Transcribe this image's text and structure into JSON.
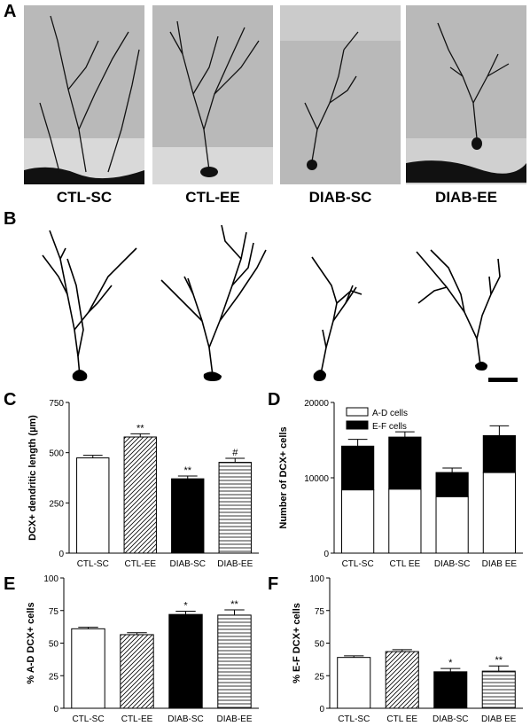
{
  "panel_letters": [
    "A",
    "B",
    "C",
    "D",
    "E",
    "F"
  ],
  "micrograph_labels": [
    "CTL-SC",
    "CTL-EE",
    "DIAB-SC",
    "DIAB-EE"
  ],
  "colors": {
    "bar_fill_black": "#000000",
    "bar_fill_white": "#ffffff",
    "hatch": "#000000",
    "micrograph_bg": "#b9b9b9"
  },
  "chart_data": [
    {
      "panel": "C",
      "type": "bar",
      "categories": [
        "CTL-SC",
        "CTL-EE",
        "DIAB-SC",
        "DIAB-EE"
      ],
      "values": [
        474,
        578,
        370,
        452
      ],
      "errors": [
        13,
        16,
        14,
        20
      ],
      "annotations": [
        "",
        "**",
        "**",
        "#"
      ],
      "fills": [
        "white",
        "diagonal",
        "black",
        "horizontal"
      ],
      "ylabel": "DCX+ dendritic length (µm)",
      "yticks": [
        0,
        250,
        500,
        750
      ],
      "ylim": [
        0,
        750
      ]
    },
    {
      "panel": "D",
      "type": "bar",
      "stacked": true,
      "categories": [
        "CTL-SC",
        "CTL EE",
        "DIAB-SC",
        "DIAB EE"
      ],
      "series": [
        {
          "name": "A-D cells",
          "values": [
            8400,
            8500,
            7500,
            10700
          ],
          "fill": "white"
        },
        {
          "name": "E-F cells",
          "values": [
            5800,
            6900,
            3200,
            4900
          ],
          "fill": "black"
        }
      ],
      "errors": [
        900,
        700,
        600,
        1300
      ],
      "ylabel": "Number of DCX+ cells",
      "yticks": [
        0,
        10000,
        20000
      ],
      "ylim": [
        0,
        20000
      ],
      "legend_position": "top-left"
    },
    {
      "panel": "E",
      "type": "bar",
      "categories": [
        "CTL-SC",
        "CTL-EE",
        "DIAB-SC",
        "DIAB-EE"
      ],
      "values": [
        61,
        56.5,
        72,
        71.5
      ],
      "errors": [
        1.2,
        1.5,
        2.5,
        4
      ],
      "annotations": [
        "",
        "",
        "*",
        "**"
      ],
      "fills": [
        "white",
        "diagonal",
        "black",
        "horizontal"
      ],
      "ylabel": "% A-D DCX+ cells",
      "yticks": [
        0,
        25,
        50,
        75,
        100
      ],
      "ylim": [
        0,
        100
      ]
    },
    {
      "panel": "F",
      "type": "bar",
      "categories": [
        "CTL-SC",
        "CTL EE",
        "DIAB-SC",
        "DIAB EE"
      ],
      "values": [
        39,
        43.5,
        28,
        28.5
      ],
      "errors": [
        1.2,
        1.5,
        2.5,
        4
      ],
      "annotations": [
        "",
        "",
        "*",
        "**"
      ],
      "fills": [
        "white",
        "diagonal",
        "black",
        "horizontal"
      ],
      "ylabel": "% E-F DCX+ cells",
      "yticks": [
        0,
        25,
        50,
        75,
        100
      ],
      "ylim": [
        0,
        100
      ]
    }
  ]
}
